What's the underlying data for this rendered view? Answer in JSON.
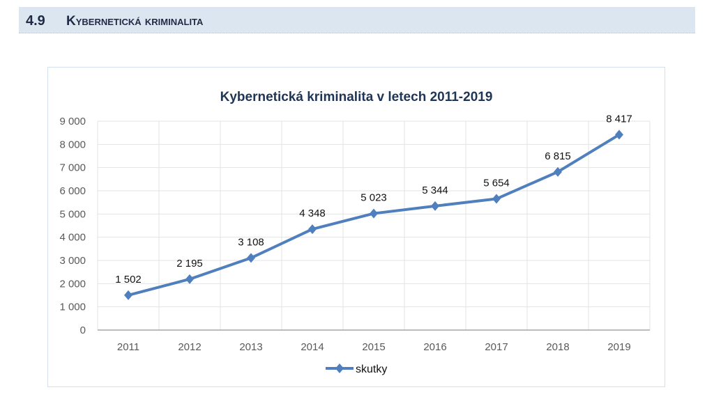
{
  "header": {
    "number": "4.9",
    "title": "Kybernetická kriminalita"
  },
  "chart_data": {
    "type": "line",
    "title": "Kybernetická kriminalita v letech 2011-2019",
    "categories": [
      "2011",
      "2012",
      "2013",
      "2014",
      "2015",
      "2016",
      "2017",
      "2018",
      "2019"
    ],
    "series": [
      {
        "name": "skutky",
        "values": [
          1502,
          2195,
          3108,
          4348,
          5023,
          5344,
          5654,
          6815,
          8417
        ],
        "color": "#4f7fbd"
      }
    ],
    "data_labels": [
      "1 502",
      "2 195",
      "3 108",
      "4 348",
      "5 023",
      "5 344",
      "5 654",
      "6 815",
      "8 417"
    ],
    "y_ticks": [
      "0",
      "1 000",
      "2 000",
      "3 000",
      "4 000",
      "5 000",
      "6 000",
      "7 000",
      "8 000",
      "9 000"
    ],
    "ylim": [
      0,
      9000
    ],
    "grid": true,
    "legend": "bottom",
    "xlabel": "",
    "ylabel": ""
  }
}
